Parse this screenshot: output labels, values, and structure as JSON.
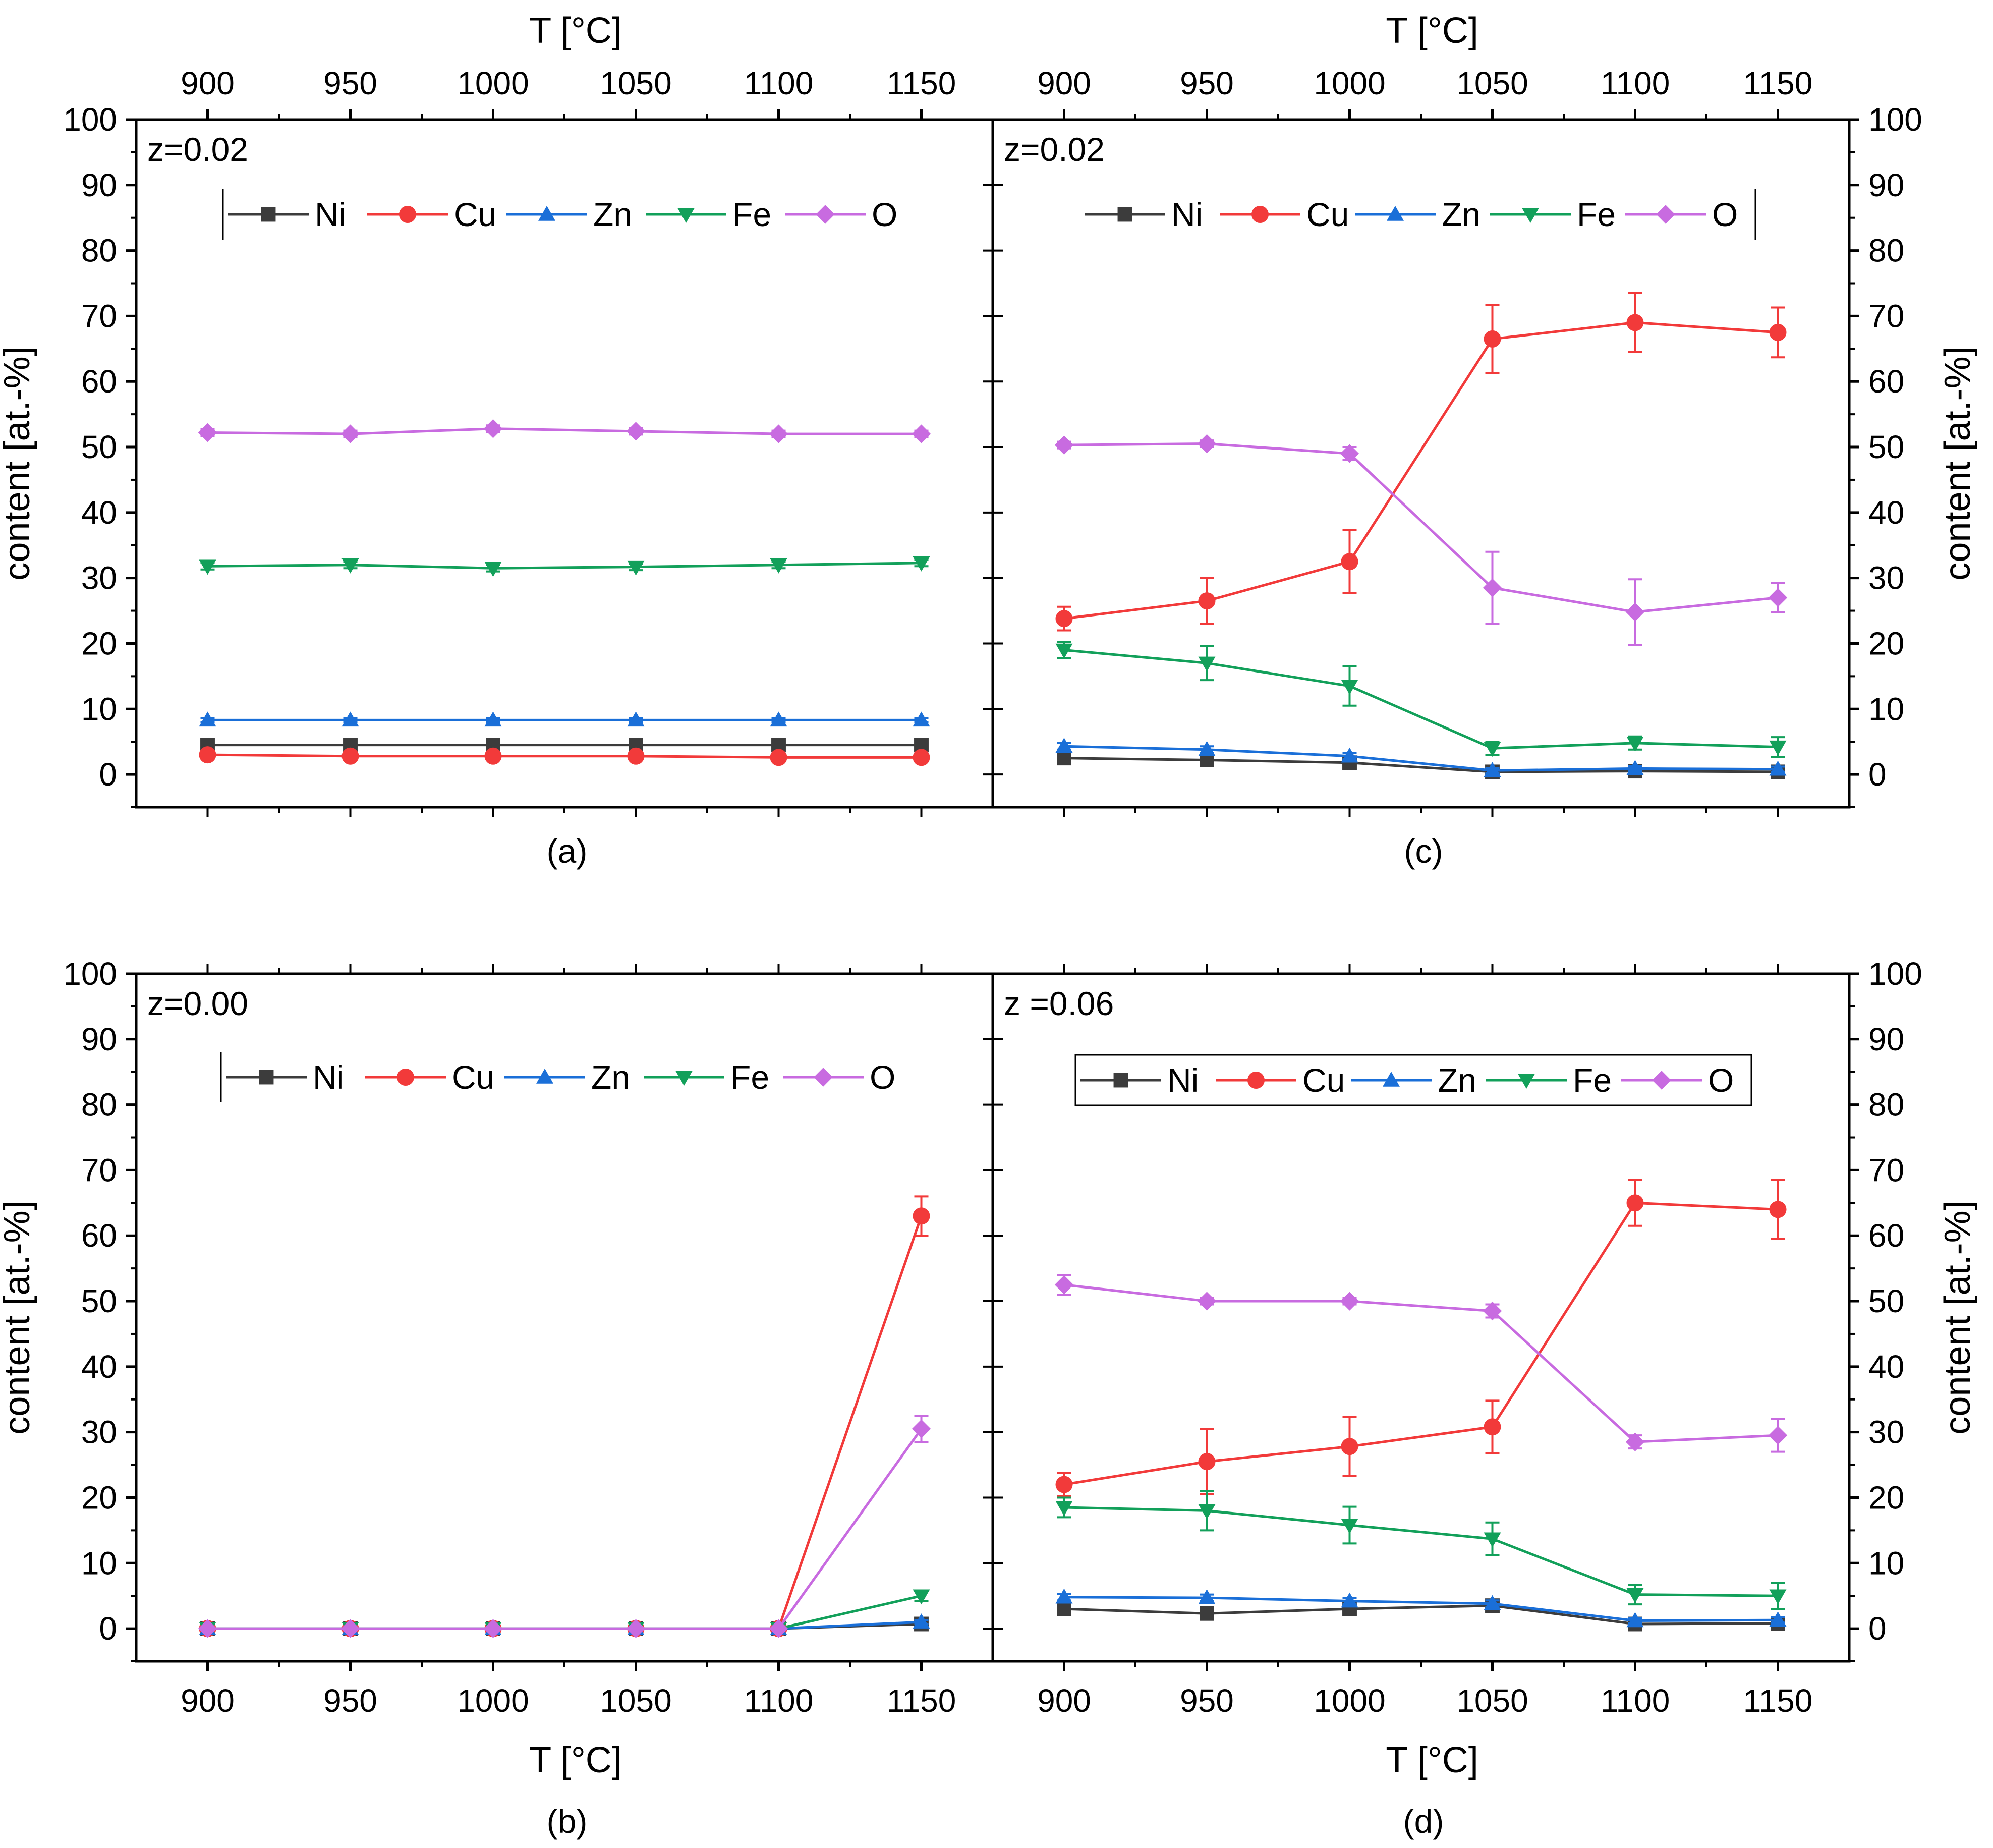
{
  "colors": {
    "Ni": "#3c3c3c",
    "Cu": "#f23a3a",
    "Zn": "#1a6fd8",
    "Fe": "#12a05a",
    "O": "#c86be0",
    "axis": "#000000"
  },
  "markers": {
    "Ni": "square",
    "Cu": "circle",
    "Zn": "triangle-up",
    "Fe": "triangle-down",
    "O": "diamond"
  },
  "chart_data": [
    {
      "id": "a",
      "type": "line",
      "caption": "(a)",
      "annotation": "z=0.02",
      "top_xlabel": "T [°C]",
      "ylabel": "content [at.-%]",
      "x": [
        900,
        950,
        1000,
        1050,
        1100,
        1150
      ],
      "xticks": [
        "900",
        "950",
        "1000",
        "1050",
        "1100",
        "1150"
      ],
      "xlim": [
        875,
        1175
      ],
      "ylim": [
        -5,
        100
      ],
      "yticks": [
        "0",
        "10",
        "20",
        "30",
        "40",
        "50",
        "60",
        "70",
        "80",
        "90",
        "100"
      ],
      "legend": [
        "Ni",
        "Cu",
        "Zn",
        "Fe",
        "O"
      ],
      "series": [
        {
          "name": "Ni",
          "values": [
            4.5,
            4.5,
            4.5,
            4.5,
            4.5,
            4.5
          ],
          "errors": [
            0.3,
            0.3,
            0.3,
            0.3,
            0.3,
            0.3
          ]
        },
        {
          "name": "Cu",
          "values": [
            3.0,
            2.8,
            2.8,
            2.8,
            2.6,
            2.6
          ],
          "errors": [
            0.3,
            0.3,
            0.3,
            0.3,
            0.3,
            0.3
          ]
        },
        {
          "name": "Zn",
          "values": [
            8.3,
            8.3,
            8.3,
            8.3,
            8.3,
            8.3
          ],
          "errors": [
            0.3,
            0.3,
            0.3,
            0.3,
            0.3,
            0.3
          ]
        },
        {
          "name": "Fe",
          "values": [
            31.8,
            32.0,
            31.5,
            31.7,
            32.0,
            32.3
          ],
          "errors": [
            0.5,
            0.5,
            0.5,
            0.5,
            0.5,
            0.5
          ]
        },
        {
          "name": "O",
          "values": [
            52.2,
            52.0,
            52.8,
            52.4,
            52.0,
            52.0
          ],
          "errors": [
            0.5,
            0.5,
            0.5,
            0.5,
            0.5,
            0.5
          ]
        }
      ]
    },
    {
      "id": "c",
      "type": "line",
      "caption": "(c)",
      "annotation": "z=0.02",
      "top_xlabel": "T [°C]",
      "ylabel": "content [at.-%]",
      "x": [
        900,
        950,
        1000,
        1050,
        1100,
        1150
      ],
      "xticks": [
        "900",
        "950",
        "1000",
        "1050",
        "1100",
        "1150"
      ],
      "xlim": [
        875,
        1175
      ],
      "ylim": [
        -5,
        100
      ],
      "yticks": [
        "0",
        "10",
        "20",
        "30",
        "40",
        "50",
        "60",
        "70",
        "80",
        "90",
        "100"
      ],
      "legend": [
        "Ni",
        "Cu",
        "Zn",
        "Fe",
        "O"
      ],
      "series": [
        {
          "name": "Ni",
          "values": [
            2.5,
            2.2,
            1.8,
            0.4,
            0.5,
            0.4
          ],
          "errors": [
            0.4,
            0.4,
            0.4,
            0.3,
            0.3,
            0.3
          ]
        },
        {
          "name": "Cu",
          "values": [
            23.8,
            26.5,
            32.5,
            66.5,
            69.0,
            67.5
          ],
          "errors": [
            1.8,
            3.5,
            4.8,
            5.2,
            4.5,
            3.8
          ]
        },
        {
          "name": "Zn",
          "values": [
            4.3,
            3.8,
            2.8,
            0.6,
            0.9,
            0.8
          ],
          "errors": [
            0.5,
            0.5,
            0.5,
            0.4,
            0.4,
            0.4
          ]
        },
        {
          "name": "Fe",
          "values": [
            19.0,
            17.0,
            13.5,
            4.0,
            4.8,
            4.2
          ],
          "errors": [
            1.2,
            2.6,
            3.0,
            1.0,
            1.0,
            1.5
          ]
        },
        {
          "name": "O",
          "values": [
            50.3,
            50.5,
            49.0,
            28.5,
            24.8,
            27.0
          ],
          "errors": [
            0.5,
            0.5,
            1.0,
            5.5,
            5.0,
            2.2
          ]
        }
      ]
    },
    {
      "id": "b",
      "type": "line",
      "caption": "(b)",
      "annotation": "z=0.00",
      "xlabel": "T [°C]",
      "ylabel": "content [at.-%]",
      "x": [
        900,
        950,
        1000,
        1050,
        1100,
        1150
      ],
      "xticks": [
        "900",
        "950",
        "1000",
        "1050",
        "1100",
        "1150"
      ],
      "xlim": [
        875,
        1175
      ],
      "ylim": [
        -5,
        100
      ],
      "yticks": [
        "0",
        "10",
        "20",
        "30",
        "40",
        "50",
        "60",
        "70",
        "80",
        "90",
        "100"
      ],
      "legend": [
        "Ni",
        "Cu",
        "Zn",
        "Fe",
        "O"
      ],
      "series": [
        {
          "name": "Ni",
          "values": [
            0,
            0,
            0,
            0,
            0,
            0.7
          ],
          "errors": [
            0,
            0,
            0,
            0,
            0,
            0.3
          ]
        },
        {
          "name": "Cu",
          "values": [
            0,
            0,
            0,
            0,
            0,
            63.0
          ],
          "errors": [
            0,
            0,
            0,
            0,
            0,
            3.0
          ]
        },
        {
          "name": "Zn",
          "values": [
            0,
            0,
            0,
            0,
            0,
            1.0
          ],
          "errors": [
            0,
            0,
            0,
            0,
            0,
            0.3
          ]
        },
        {
          "name": "Fe",
          "values": [
            0,
            0,
            0,
            0,
            0,
            5.0
          ],
          "errors": [
            0,
            0,
            0,
            0,
            0,
            0.8
          ]
        },
        {
          "name": "O",
          "values": [
            0,
            0,
            0,
            0,
            0,
            30.5
          ],
          "errors": [
            0,
            0,
            0,
            0,
            0,
            2.0
          ]
        }
      ]
    },
    {
      "id": "d",
      "type": "line",
      "caption": "(d)",
      "annotation": "z =0.06",
      "xlabel": "T [°C]",
      "ylabel": "content [at.-%]",
      "x": [
        900,
        950,
        1000,
        1050,
        1100,
        1150
      ],
      "xticks": [
        "900",
        "950",
        "1000",
        "1050",
        "1100",
        "1150"
      ],
      "xlim": [
        875,
        1175
      ],
      "ylim": [
        -5,
        100
      ],
      "yticks": [
        "0",
        "10",
        "20",
        "30",
        "40",
        "50",
        "60",
        "70",
        "80",
        "90",
        "100"
      ],
      "legend": [
        "Ni",
        "Cu",
        "Zn",
        "Fe",
        "O"
      ],
      "series": [
        {
          "name": "Ni",
          "values": [
            3.0,
            2.3,
            3.0,
            3.5,
            0.7,
            0.8
          ],
          "errors": [
            0.4,
            0.4,
            0.4,
            0.4,
            0.3,
            0.3
          ]
        },
        {
          "name": "Cu",
          "values": [
            22.0,
            25.5,
            27.8,
            30.8,
            65.0,
            64.0
          ],
          "errors": [
            1.8,
            5.0,
            4.5,
            4.0,
            3.5,
            4.5
          ]
        },
        {
          "name": "Zn",
          "values": [
            4.8,
            4.7,
            4.2,
            3.8,
            1.2,
            1.3
          ],
          "errors": [
            0.5,
            0.5,
            0.5,
            0.5,
            0.4,
            0.4
          ]
        },
        {
          "name": "Fe",
          "values": [
            18.5,
            18.0,
            15.8,
            13.7,
            5.2,
            5.0
          ],
          "errors": [
            1.5,
            3.0,
            2.8,
            2.5,
            1.5,
            2.0
          ]
        },
        {
          "name": "O",
          "values": [
            52.5,
            50.0,
            50.0,
            48.5,
            28.5,
            29.5
          ],
          "errors": [
            1.5,
            0.5,
            0.5,
            1.0,
            1.0,
            2.5
          ]
        }
      ]
    }
  ]
}
